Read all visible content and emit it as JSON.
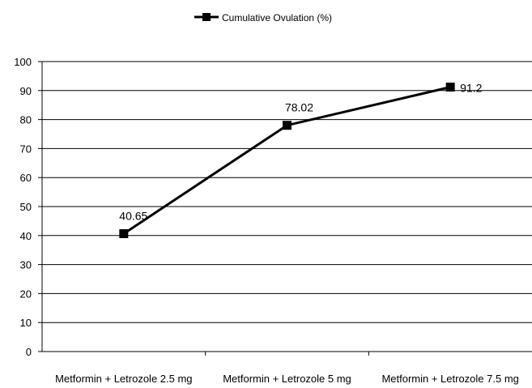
{
  "chart_data": {
    "type": "line",
    "categories": [
      "Metformin + Letrozole 2.5 mg",
      "Metformin + Letrozole 5 mg",
      "Metformin + Letrozole 7.5 mg"
    ],
    "series": [
      {
        "name": "Cumulative Ovulation (%)",
        "values": [
          40.65,
          78.02,
          91.2
        ],
        "color": "#000000"
      }
    ],
    "data_labels": [
      "40.65",
      "78.02",
      "91.2"
    ],
    "ylim": [
      0,
      100
    ],
    "yticks": [
      0,
      10,
      20,
      30,
      40,
      50,
      60,
      70,
      80,
      90,
      100
    ],
    "grid": true,
    "legend": "top-center",
    "marker": "square"
  }
}
